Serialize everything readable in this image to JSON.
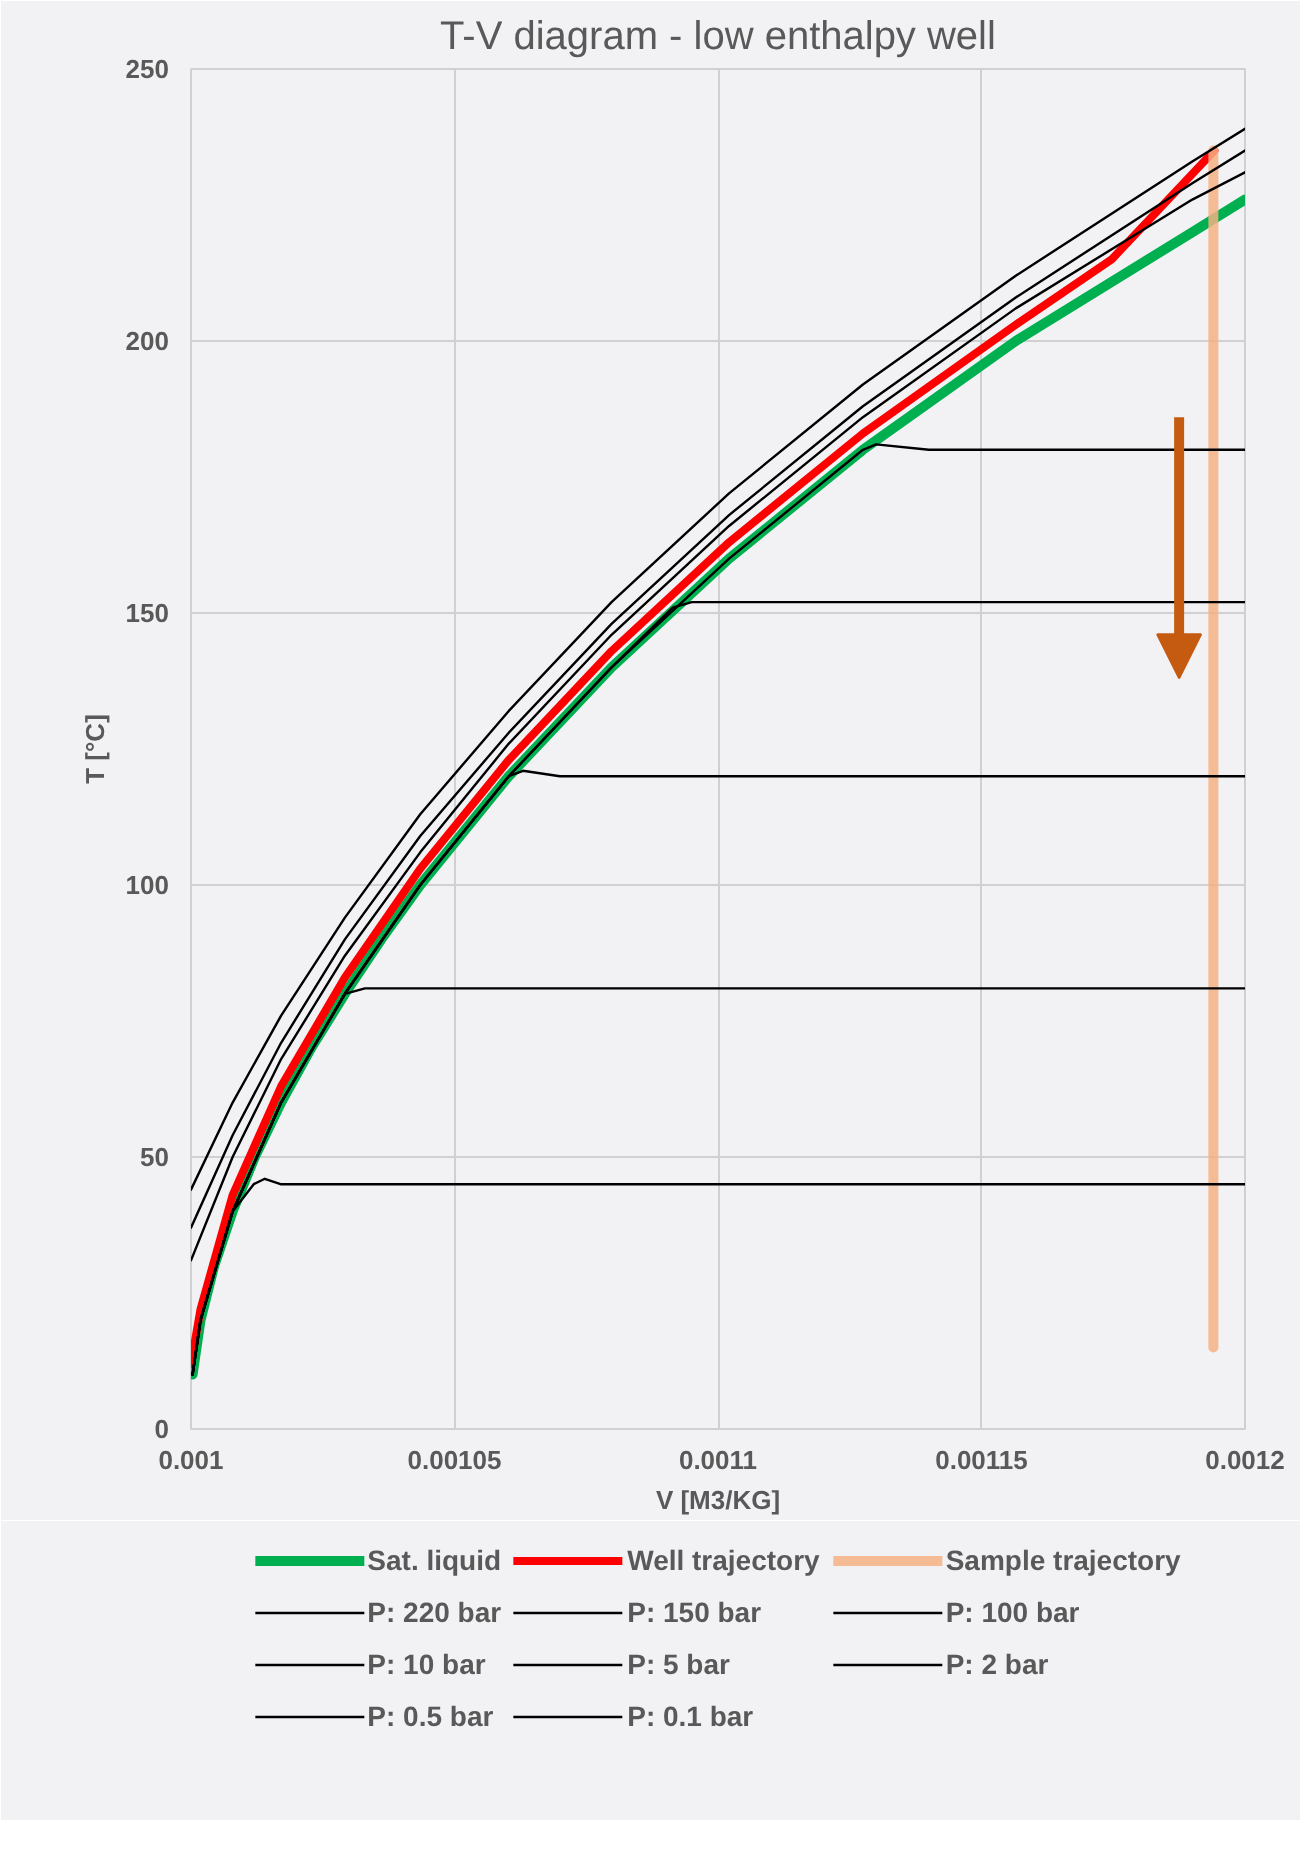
{
  "chart_data": {
    "type": "line",
    "title": "T-V diagram - low enthalpy well",
    "xlabel": "V [M3/KG]",
    "ylabel": "T [°C]",
    "xlim": [
      0.001,
      0.0012
    ],
    "xticks": [
      0.001,
      0.00105,
      0.0011,
      0.00115,
      0.0012
    ],
    "ylim": [
      0,
      250
    ],
    "yticks": [
      0,
      50,
      100,
      150,
      200,
      250
    ],
    "grid": true,
    "legend": "bottom",
    "marker": "none",
    "line_style": "solid",
    "series": [
      {
        "name": "Sat. liquid",
        "color": "#00b050",
        "x": [
          0.0010003,
          0.0010018,
          0.0010044,
          0.0010079,
          0.0010121,
          0.0010171,
          0.0010228,
          0.0010292,
          0.0010361,
          0.0010435,
          0.0010603,
          0.0010798,
          0.0011021,
          0.0011275,
          0.0011565,
          0.00119,
          0.0012
        ],
        "values": [
          10,
          20,
          30,
          40,
          50,
          60,
          70,
          80,
          90,
          100,
          120,
          140,
          160,
          180,
          200,
          220,
          226
        ]
      },
      {
        "name": "Well trajectory",
        "color": "#ff0000",
        "x": [
          0.001,
          0.0010018,
          0.0010079,
          0.0010171,
          0.0010292,
          0.0010435,
          0.0010603,
          0.0010798,
          0.0011021,
          0.0011275,
          0.0011565,
          0.0011747,
          0.0011942
        ],
        "values": [
          12,
          22,
          43,
          63,
          83,
          103,
          123,
          143,
          163,
          183,
          203,
          215,
          235
        ]
      },
      {
        "name": "Sample trajectory",
        "color": "#f4b183",
        "x": [
          0.001194,
          0.001194
        ],
        "values": [
          235,
          15
        ]
      },
      {
        "name": "P: 220 bar",
        "color": "#000000",
        "x": [
          0.001,
          0.0010079,
          0.0010171,
          0.0010292,
          0.0010435,
          0.0010603,
          0.0010798,
          0.0011021,
          0.0011275,
          0.0011565,
          0.00119,
          0.0012
        ],
        "values": [
          44,
          60,
          76,
          94,
          113,
          132,
          152,
          172,
          192,
          212,
          233,
          239
        ]
      },
      {
        "name": "P: 150 bar",
        "color": "#000000",
        "x": [
          0.001,
          0.0010079,
          0.0010171,
          0.0010292,
          0.0010435,
          0.0010603,
          0.0010798,
          0.0011021,
          0.0011275,
          0.0011565,
          0.00119,
          0.0012
        ],
        "values": [
          37,
          54,
          71,
          90,
          109,
          128,
          148,
          168,
          188,
          208,
          229,
          235
        ]
      },
      {
        "name": "P: 100 bar",
        "color": "#000000",
        "x": [
          0.001,
          0.0010079,
          0.0010171,
          0.0010292,
          0.0010435,
          0.0010603,
          0.0010798,
          0.0011021,
          0.0011275,
          0.0011565,
          0.00119,
          0.0012
        ],
        "values": [
          31,
          50,
          68,
          87,
          106,
          126,
          146,
          166,
          186,
          206,
          226,
          231
        ]
      },
      {
        "name": "P: 10 bar",
        "color": "#000000",
        "x": [
          0.0010003,
          0.0010018,
          0.0010079,
          0.0010171,
          0.0010292,
          0.0010435,
          0.0010603,
          0.0010798,
          0.0011021,
          0.0011275,
          0.00113,
          0.00114,
          0.0012
        ],
        "values": [
          10,
          20,
          40,
          60,
          80,
          100,
          120,
          140,
          160,
          180,
          181,
          180,
          180
        ]
      },
      {
        "name": "P: 5 bar",
        "color": "#000000",
        "x": [
          0.0010003,
          0.0010018,
          0.0010079,
          0.0010171,
          0.0010292,
          0.0010435,
          0.0010603,
          0.0010798,
          0.0010914,
          0.001095,
          0.00111,
          0.0012
        ],
        "values": [
          10,
          20,
          40,
          60,
          80,
          100,
          120,
          140,
          151,
          152,
          152,
          152
        ]
      },
      {
        "name": "P: 2 bar",
        "color": "#000000",
        "x": [
          0.0010003,
          0.0010018,
          0.0010079,
          0.0010171,
          0.0010292,
          0.0010435,
          0.0010603,
          0.001063,
          0.00107,
          0.0012
        ],
        "values": [
          10,
          20,
          40,
          60,
          80,
          100,
          120,
          121,
          120,
          120
        ]
      },
      {
        "name": "P: 0.5 bar",
        "color": "#000000",
        "x": [
          0.0010003,
          0.0010018,
          0.0010079,
          0.0010171,
          0.0010292,
          0.001033,
          0.00104,
          0.0012
        ],
        "values": [
          10,
          20,
          40,
          60,
          80,
          81,
          81,
          81
        ]
      },
      {
        "name": "P: 0.1 bar",
        "color": "#000000",
        "x": [
          0.0010003,
          0.0010018,
          0.0010079,
          0.0010119,
          0.001014,
          0.001017,
          0.0012
        ],
        "values": [
          10,
          20,
          40,
          45,
          46,
          45,
          45
        ]
      }
    ]
  }
}
